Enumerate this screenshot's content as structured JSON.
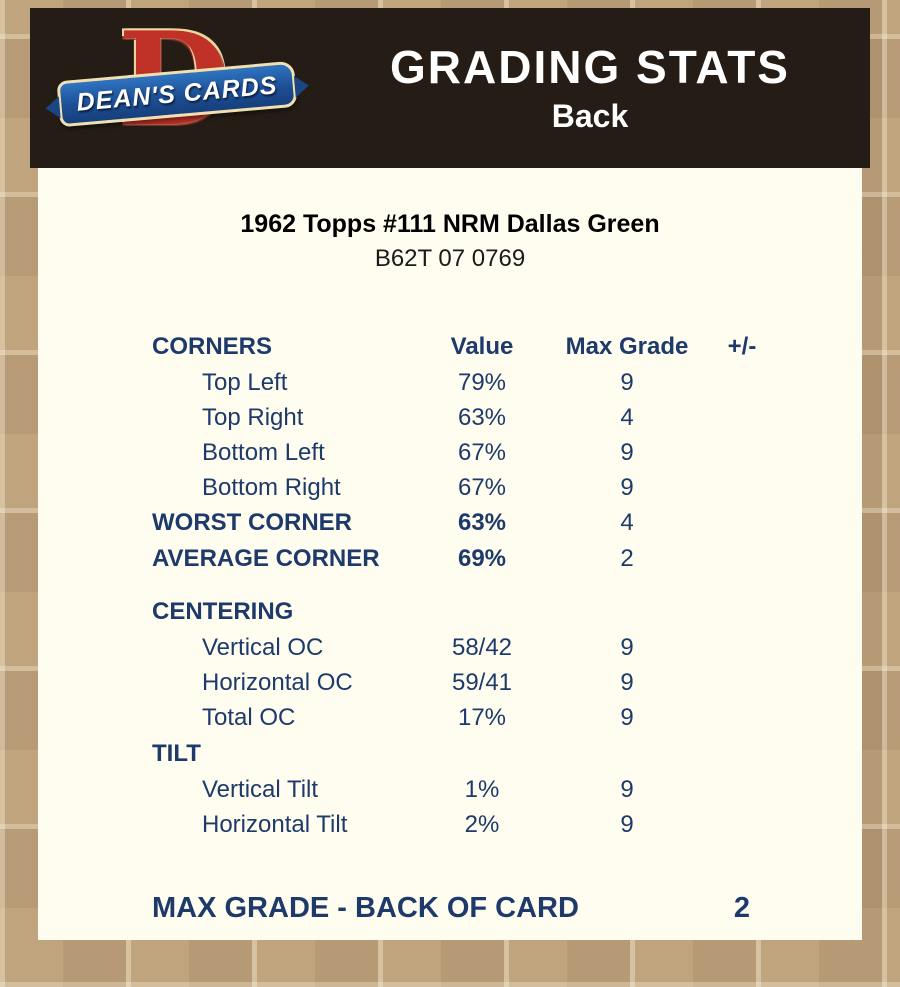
{
  "colors": {
    "background_tan": "#cfb48e",
    "header_bar": "#251d15",
    "panel_cream": "#fffdf0",
    "navy_text": "#1d3a6a",
    "logo_red": "#c03228",
    "logo_blue": "#1d4f96"
  },
  "header": {
    "title": "GRADING STATS",
    "subtitle": "Back",
    "logo": {
      "letter": "D",
      "text": "DEAN'S CARDS"
    }
  },
  "card": {
    "title": "1962 Topps #111 NRM Dallas Green",
    "serial": "B62T 07 0769"
  },
  "table": {
    "headers": {
      "section": "CORNERS",
      "value": "Value",
      "max_grade": "Max Grade",
      "plus_minus": "+/-"
    },
    "corner_rows": [
      {
        "label": "Top Left",
        "value": "79%",
        "max": "9"
      },
      {
        "label": "Top Right",
        "value": "63%",
        "max": "4"
      },
      {
        "label": "Bottom Left",
        "value": "67%",
        "max": "9"
      },
      {
        "label": "Bottom Right",
        "value": "67%",
        "max": "9"
      }
    ],
    "worst_corner": {
      "label": "WORST CORNER",
      "value": "63%",
      "max": "4"
    },
    "average_corner": {
      "label": "AVERAGE CORNER",
      "value": "69%",
      "max": "2"
    },
    "centering": {
      "header": "CENTERING",
      "rows": [
        {
          "label": "Vertical OC",
          "value": "58/42",
          "max": "9"
        },
        {
          "label": "Horizontal OC",
          "value": "59/41",
          "max": "9"
        },
        {
          "label": "Total OC",
          "value": "17%",
          "max": "9"
        }
      ]
    },
    "tilt": {
      "header": "TILT",
      "rows": [
        {
          "label": "Vertical Tilt",
          "value": "1%",
          "max": "9"
        },
        {
          "label": "Horizontal Tilt",
          "value": "2%",
          "max": "9"
        }
      ]
    },
    "footer": {
      "label": "MAX GRADE - BACK OF CARD",
      "value": "2"
    }
  }
}
